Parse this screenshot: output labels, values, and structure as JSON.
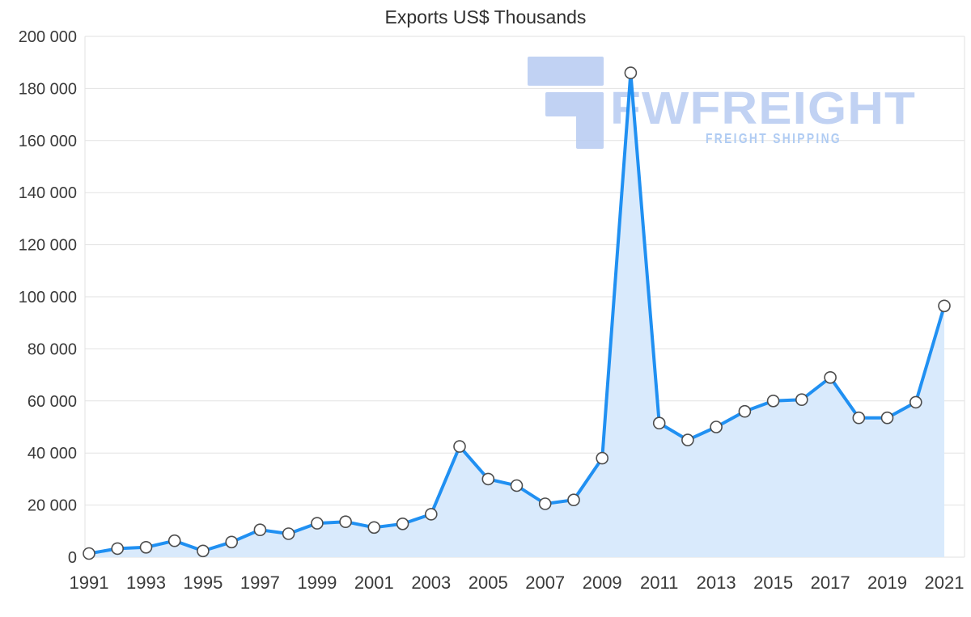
{
  "watermark": {
    "brand": "FWFREIGHT",
    "tagline": "FREIGHT SHIPPING"
  },
  "chart_data": {
    "type": "area",
    "title": "Exports US$ Thousands",
    "xlabel": "",
    "ylabel": "",
    "x": [
      1991,
      1992,
      1993,
      1994,
      1995,
      1996,
      1997,
      1998,
      1999,
      2000,
      2001,
      2002,
      2003,
      2004,
      2005,
      2006,
      2007,
      2008,
      2009,
      2010,
      2011,
      2012,
      2013,
      2014,
      2015,
      2016,
      2017,
      2018,
      2019,
      2020,
      2021
    ],
    "series": [
      {
        "name": "Exports",
        "values": [
          1400,
          3300,
          3800,
          6300,
          2400,
          5800,
          10500,
          9000,
          13000,
          13600,
          11400,
          12800,
          16500,
          42500,
          30000,
          27500,
          20500,
          22000,
          38000,
          186000,
          51500,
          45000,
          50000,
          56000,
          60000,
          60500,
          69000,
          53500,
          53500,
          59500,
          96500
        ]
      }
    ],
    "ylim": [
      0,
      200000
    ],
    "ytick_step": 20000,
    "ytick_labels": [
      "0",
      "20 000",
      "40 000",
      "60 000",
      "80 000",
      "100 000",
      "120 000",
      "140 000",
      "160 000",
      "180 000",
      "200 000"
    ],
    "xtick_labels": [
      "1991",
      "1993",
      "1995",
      "1997",
      "1999",
      "2001",
      "2003",
      "2005",
      "2007",
      "2009",
      "2011",
      "2013",
      "2015",
      "2017",
      "2019",
      "2021"
    ],
    "xtick_every": 2,
    "grid": true,
    "legend": false,
    "colors": {
      "line": "#2090f2",
      "fill": "#d9eafc",
      "marker_fill": "#ffffff",
      "marker_stroke": "#4d4d4d",
      "grid": "#e2e2e2",
      "axis_text": "#3a3a3a",
      "watermark": "#b7cbf1",
      "watermark_tagline": "#a3c4f2"
    }
  }
}
